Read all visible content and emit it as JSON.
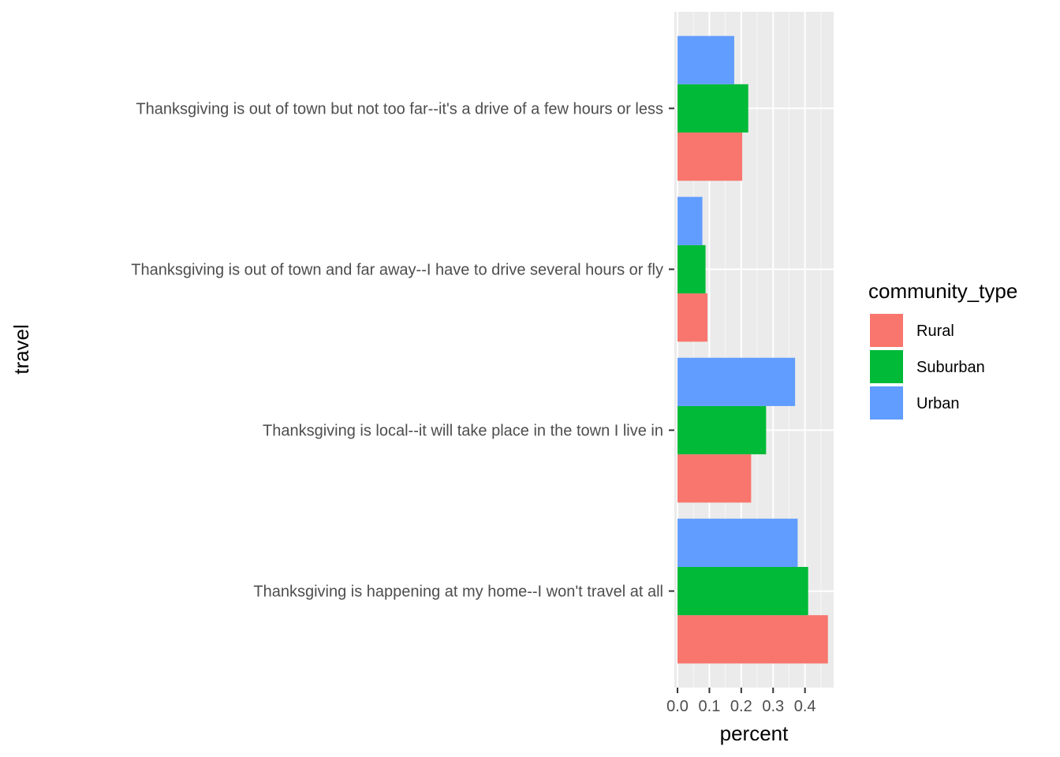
{
  "chart_data": {
    "type": "bar",
    "orientation": "horizontal",
    "grouped": true,
    "xlabel": "percent",
    "ylabel": "travel",
    "xlim": [
      -0.01,
      0.49
    ],
    "x_ticks": [
      "0.0",
      "0.1",
      "0.2",
      "0.3",
      "0.4"
    ],
    "x_tick_values": [
      0.0,
      0.1,
      0.2,
      0.3,
      0.4
    ],
    "categories": [
      "Thanksgiving is out of town but not too far--it's a drive of a few hours or less",
      "Thanksgiving is out of town and far away--I have to drive several hours or fly",
      "Thanksgiving is local--it will take place in the town I live in",
      "Thanksgiving is happening at my home--I won't travel at all"
    ],
    "series": [
      {
        "name": "Rural",
        "color": "#F8766D",
        "values": [
          0.203,
          0.094,
          0.231,
          0.472
        ]
      },
      {
        "name": "Suburban",
        "color": "#00BA38",
        "values": [
          0.222,
          0.088,
          0.278,
          0.41
        ]
      },
      {
        "name": "Urban",
        "color": "#619CFF",
        "values": [
          0.178,
          0.078,
          0.369,
          0.377
        ]
      }
    ],
    "legend": {
      "title": "community_type",
      "position": "right"
    },
    "grid": true,
    "panel_background": "#EBEBEB"
  }
}
